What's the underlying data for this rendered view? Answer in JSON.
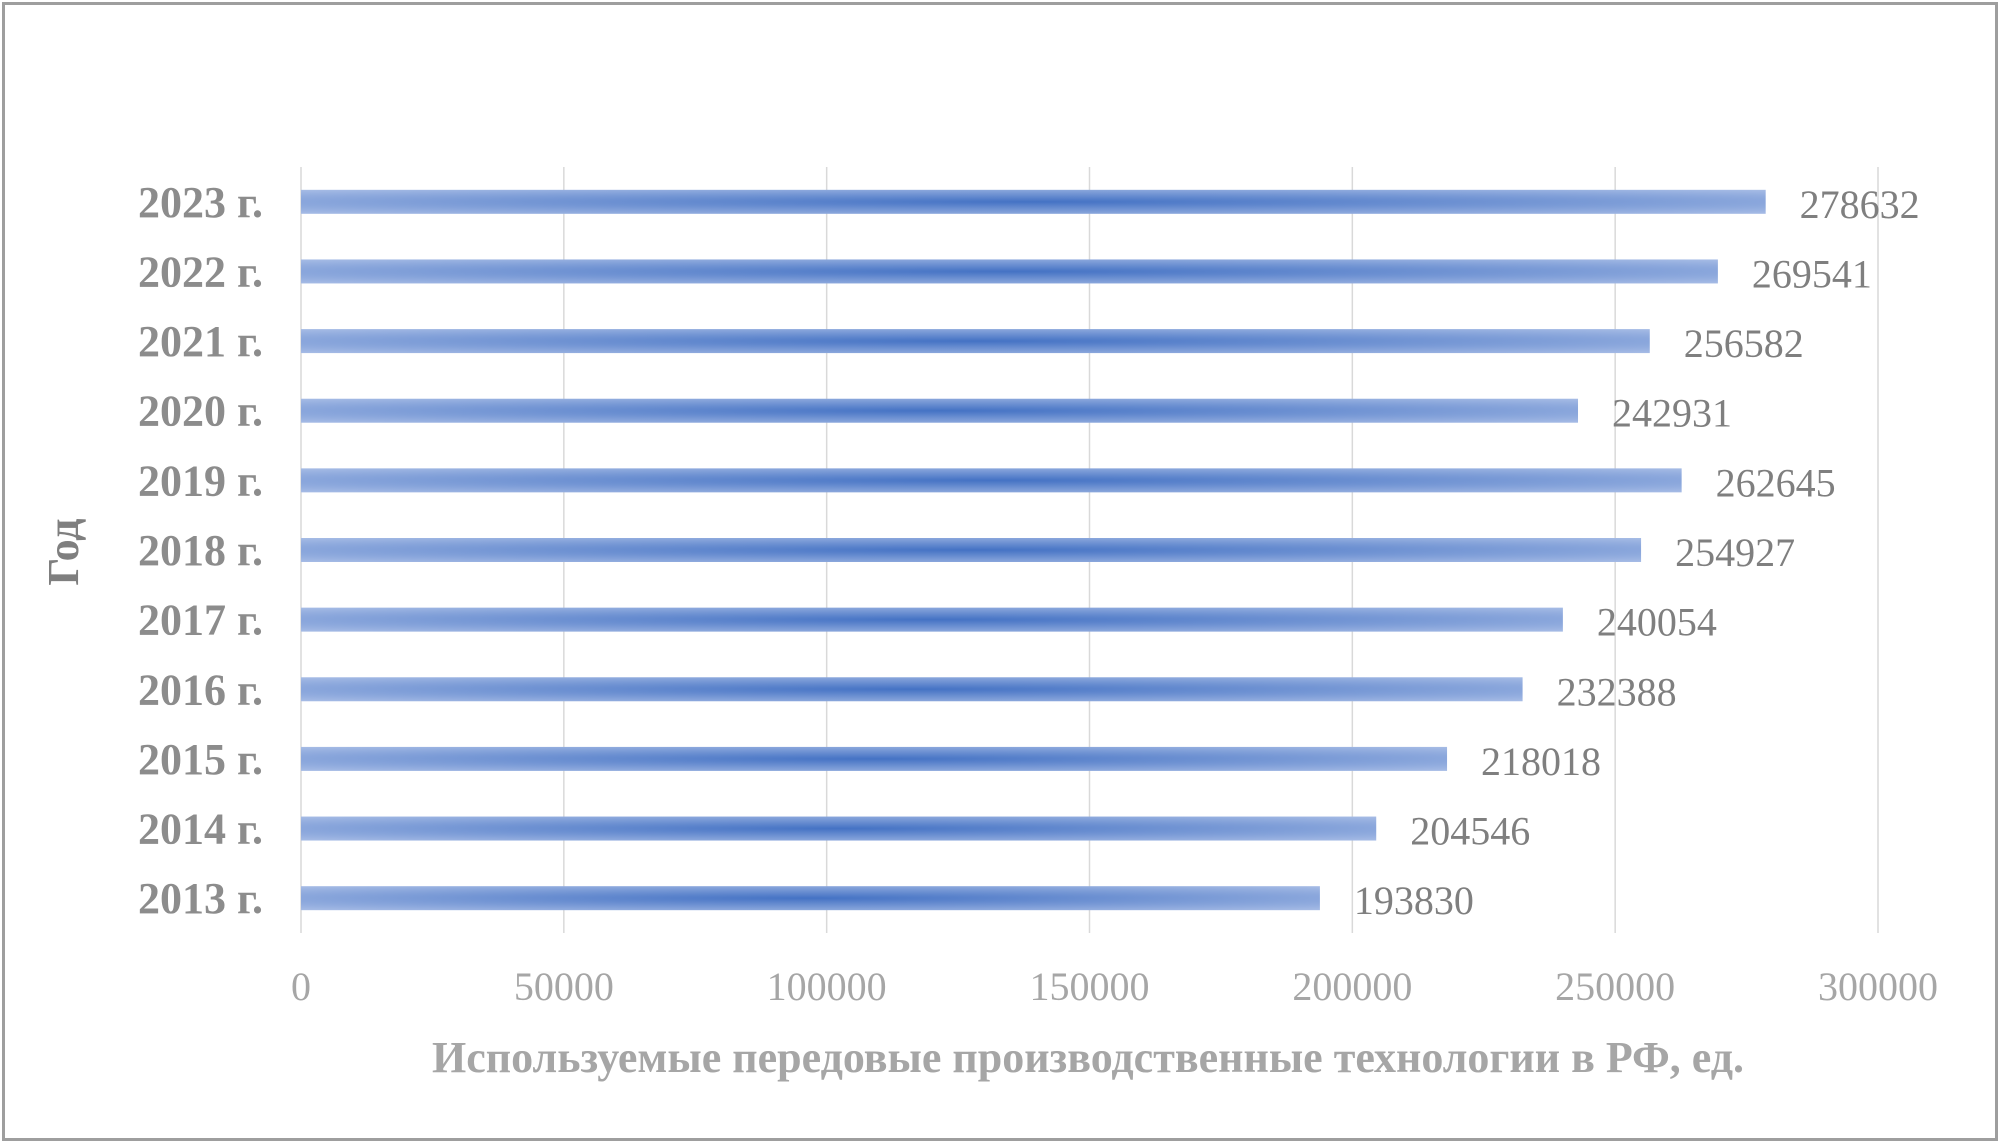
{
  "chart_data": {
    "type": "bar",
    "orientation": "horizontal",
    "categories": [
      "2013 г.",
      "2014 г.",
      "2015 г.",
      "2016 г.",
      "2017 г.",
      "2018 г.",
      "2019 г.",
      "2020 г.",
      "2021 г.",
      "2022 г.",
      "2023 г."
    ],
    "values": [
      193830,
      204546,
      218018,
      232388,
      240054,
      254927,
      262645,
      242931,
      256582,
      269541,
      278632
    ],
    "data_labels": [
      "193830",
      "204546",
      "218018",
      "232388",
      "240054",
      "254927",
      "262645",
      "242931",
      "256582",
      "269541",
      "278632"
    ],
    "title": "",
    "xlabel": "Используемые передовые производственные технологии в РФ, ед.",
    "ylabel": "Год",
    "xlim": [
      0,
      300000
    ],
    "x_ticks": [
      "0",
      "50000",
      "100000",
      "150000",
      "200000",
      "250000",
      "300000"
    ],
    "grid": true,
    "legend": "none",
    "colors": {
      "bar_light": "#a9bde6",
      "bar_dark": "#4472c4",
      "grid": "#d9d9d9",
      "frame": "#9e9e9e"
    }
  }
}
